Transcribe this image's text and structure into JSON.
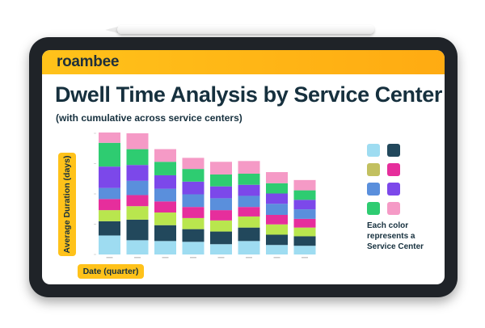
{
  "brand": "roambee",
  "title": "Dwell Time Analysis by Service Center",
  "subtitle": "(with cumulative across service centers)",
  "legend_note": "Each color represents a Service Center",
  "colors": [
    "#9edcf1",
    "#22485c",
    "#c2c060",
    "#e62e9c",
    "#5a8fdc",
    "#7c48ea",
    "#2ecc71",
    "#f59ac6"
  ],
  "extra_colors": {
    "lime": "#b9e64e",
    "orange": "#f7a54f"
  },
  "chart_data": {
    "type": "bar",
    "stacked": true,
    "title": "Dwell Time Analysis by Service Center",
    "subtitle": "(with cumulative across service centers)",
    "xlabel": "Date (quarter)",
    "ylabel": "Average Duration (days)",
    "categories": [
      "",
      "",
      "",
      "",
      "",
      "",
      "",
      ""
    ],
    "ylim": [
      0,
      153
    ],
    "grid": false,
    "legend": "right",
    "series": [
      {
        "color": "#9edcf1",
        "values": [
          24,
          18,
          17,
          16,
          13,
          17,
          12,
          11
        ]
      },
      {
        "color": "#22485c",
        "values": [
          18,
          26,
          20,
          16,
          16,
          17,
          13,
          12
        ]
      },
      {
        "color": "#b9e64e",
        "values": [
          14,
          17,
          16,
          14,
          14,
          14,
          13,
          11
        ]
      },
      {
        "color": "#e62e9c",
        "values": [
          14,
          14,
          14,
          14,
          13,
          12,
          12,
          11
        ]
      },
      {
        "color": "#5a8fdc",
        "values": [
          14,
          18,
          16,
          16,
          15,
          14,
          14,
          12
        ]
      },
      {
        "color": "#7c48ea",
        "values": [
          27,
          20,
          17,
          16,
          15,
          14,
          13,
          12
        ]
      },
      {
        "color": "#2ecc71",
        "values": [
          30,
          20,
          17,
          16,
          15,
          14,
          13,
          12
        ]
      },
      {
        "color": "#f59ac6",
        "values": [
          13,
          20,
          16,
          14,
          16,
          16,
          14,
          13
        ]
      }
    ]
  }
}
